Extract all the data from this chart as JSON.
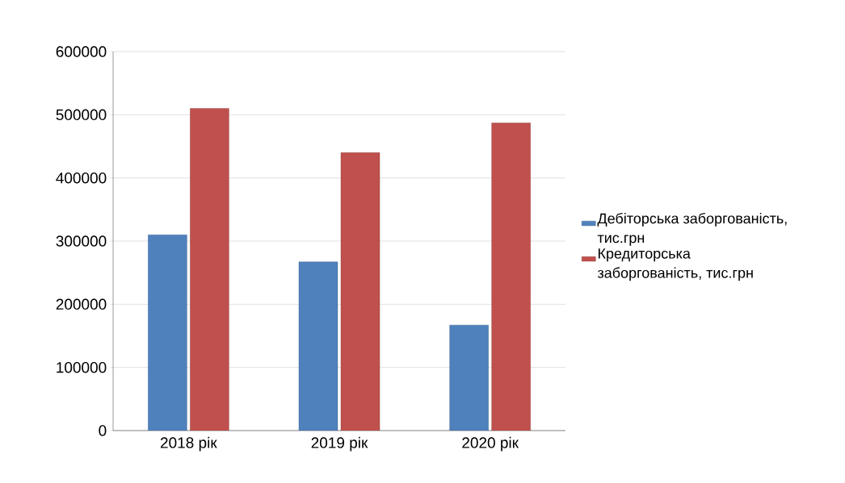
{
  "chart_data": {
    "type": "bar",
    "categories": [
      "2018 рік",
      "2019 рік",
      "2020 рік"
    ],
    "series": [
      {
        "name": "Дебіторська заборгованість, тис.грн",
        "color": "#4f81bd",
        "values": [
          310000,
          267000,
          167000
        ]
      },
      {
        "name": "Кредиторська заборгованість, тис.грн",
        "color": "#c0504d",
        "values": [
          510000,
          440000,
          487000
        ]
      }
    ],
    "ylim": [
      0,
      600000
    ],
    "yticks": [
      0,
      100000,
      200000,
      300000,
      400000,
      500000,
      600000
    ],
    "grid": "y",
    "legend": "right"
  }
}
